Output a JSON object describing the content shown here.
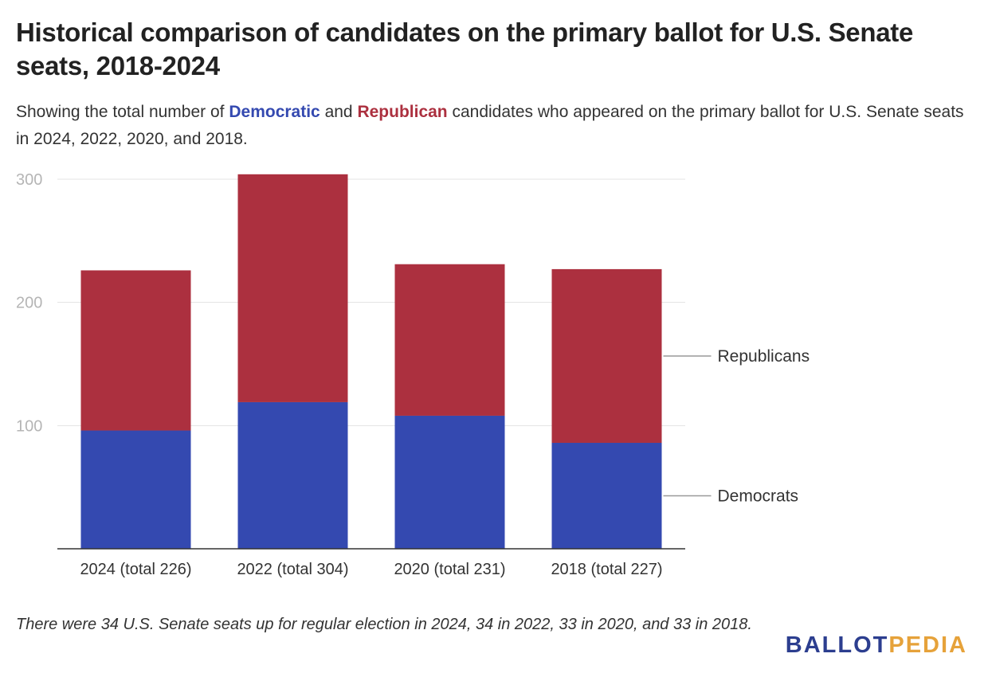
{
  "title": "Historical comparison of candidates on the primary ballot for U.S. Senate seats, 2018-2024",
  "subtitle": {
    "pre": "Showing the total number of ",
    "dem_word": "Democratic",
    "mid": " and ",
    "rep_word": "Republican",
    "post": " candidates who appeared on the primary ballot for U.S. Senate seats in 2024, 2022, 2020, and 2018."
  },
  "colors": {
    "democrats": "#3449b0",
    "republicans": "#ac303f"
  },
  "chart_data": {
    "type": "bar",
    "stacked": true,
    "categories": [
      "2024 (total 226)",
      "2022 (total 304)",
      "2020 (total 231)",
      "2018 (total 227)"
    ],
    "series": [
      {
        "name": "Democrats",
        "values": [
          96,
          119,
          108,
          86
        ]
      },
      {
        "name": "Republicans",
        "values": [
          130,
          185,
          123,
          141
        ]
      }
    ],
    "ylim": [
      0,
      300
    ],
    "yticks": [
      100,
      200,
      300
    ],
    "grid": true,
    "legend": "right, labels pointing to last bar segments"
  },
  "footnote": "There were 34 U.S. Senate seats up for regular election in 2024, 34 in 2022, 33 in 2020, and 33 in 2018.",
  "brand": {
    "part1": "BALLOT",
    "part2": "PEDIA"
  }
}
